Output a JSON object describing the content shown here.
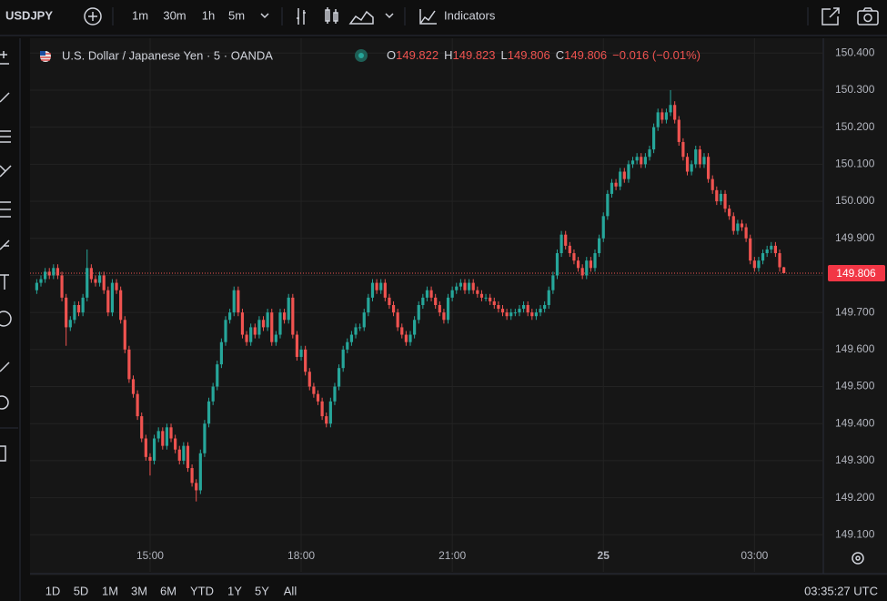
{
  "toolbar": {
    "symbol": "USDJPY",
    "intervals": [
      "1m",
      "30m",
      "1h",
      "5m"
    ],
    "indicators": "Indicators"
  },
  "range_bar": {
    "ranges": [
      "1D",
      "5D",
      "1M",
      "3M",
      "6M",
      "YTD",
      "1Y",
      "5Y",
      "All"
    ],
    "clock": "03:35:27 UTC"
  },
  "chart_data": {
    "type": "candlestick",
    "title": "U.S. Dollar / Japanese Yen · 5 · OANDA",
    "ohlc_labels": [
      "O",
      "H",
      "L",
      "C"
    ],
    "change": "−0.016 (−0.01%)",
    "up_color": "#26a69a",
    "down_color": "#ef5350",
    "grid": true,
    "xlim": [
      757,
      1702
    ],
    "xticks": [
      {
        "value": 900,
        "label": "15:00"
      },
      {
        "value": 1080,
        "label": "18:00"
      },
      {
        "value": 1260,
        "label": "21:00"
      },
      {
        "value": 1440,
        "label": "25"
      },
      {
        "value": 1620,
        "label": "03:00"
      }
    ],
    "ylim": [
      149.0,
      150.44
    ],
    "yticks": [
      {
        "value": 150.4,
        "label": "150.400"
      },
      {
        "value": 150.3,
        "label": "150.300"
      },
      {
        "value": 150.2,
        "label": "150.200"
      },
      {
        "value": 150.1,
        "label": "150.100"
      },
      {
        "value": 150.0,
        "label": "150.000"
      },
      {
        "value": 149.9,
        "label": "149.900"
      },
      {
        "value": 149.8,
        "label": "149.800"
      },
      {
        "value": 149.7,
        "label": "149.700"
      },
      {
        "value": 149.6,
        "label": "149.600"
      },
      {
        "value": 149.5,
        "label": "149.500"
      },
      {
        "value": 149.4,
        "label": "149.400"
      },
      {
        "value": 149.3,
        "label": "149.300"
      },
      {
        "value": 149.2,
        "label": "149.200"
      },
      {
        "value": 149.1,
        "label": "149.100"
      }
    ],
    "x": [
      765,
      770,
      775,
      780,
      785,
      790,
      795,
      800,
      805,
      810,
      815,
      820,
      825,
      830,
      835,
      840,
      845,
      850,
      855,
      860,
      865,
      870,
      875,
      880,
      885,
      890,
      895,
      900,
      905,
      910,
      915,
      920,
      925,
      930,
      935,
      940,
      945,
      950,
      955,
      960,
      965,
      970,
      975,
      980,
      985,
      990,
      995,
      1000,
      1005,
      1010,
      1015,
      1020,
      1025,
      1030,
      1035,
      1040,
      1045,
      1050,
      1055,
      1060,
      1065,
      1070,
      1075,
      1080,
      1085,
      1090,
      1095,
      1100,
      1105,
      1110,
      1115,
      1120,
      1125,
      1130,
      1135,
      1140,
      1145,
      1150,
      1155,
      1160,
      1165,
      1170,
      1175,
      1180,
      1185,
      1190,
      1195,
      1200,
      1205,
      1210,
      1215,
      1220,
      1225,
      1230,
      1235,
      1240,
      1245,
      1250,
      1255,
      1260,
      1265,
      1270,
      1275,
      1280,
      1285,
      1290,
      1295,
      1300,
      1305,
      1310,
      1315,
      1320,
      1325,
      1330,
      1335,
      1340,
      1345,
      1350,
      1355,
      1360,
      1365,
      1370,
      1375,
      1380,
      1385,
      1390,
      1395,
      1400,
      1405,
      1410,
      1415,
      1420,
      1425,
      1430,
      1435,
      1440,
      1445,
      1450,
      1455,
      1460,
      1465,
      1470,
      1475,
      1480,
      1485,
      1490,
      1495,
      1500,
      1505,
      1510,
      1515,
      1520,
      1525,
      1530,
      1535,
      1540,
      1545,
      1550,
      1555,
      1560,
      1565,
      1570,
      1575,
      1580,
      1585,
      1590,
      1595,
      1600,
      1605,
      1610,
      1615,
      1620,
      1625,
      1630,
      1635,
      1640,
      1645,
      1650,
      1655
    ],
    "open": [
      149.76,
      149.78,
      149.79,
      149.81,
      149.8,
      149.82,
      149.8,
      149.74,
      149.66,
      149.68,
      149.72,
      149.7,
      149.74,
      149.82,
      149.79,
      149.78,
      149.8,
      149.76,
      149.7,
      149.78,
      149.76,
      149.68,
      149.6,
      149.52,
      149.48,
      149.42,
      149.36,
      149.31,
      149.3,
      149.36,
      149.38,
      149.34,
      149.39,
      149.36,
      149.33,
      149.3,
      149.34,
      149.28,
      149.24,
      149.22,
      149.32,
      149.4,
      149.46,
      149.5,
      149.56,
      149.62,
      149.68,
      149.7,
      149.76,
      149.7,
      149.64,
      149.62,
      149.66,
      149.64,
      149.68,
      149.66,
      149.7,
      149.62,
      149.64,
      149.7,
      149.68,
      149.74,
      149.64,
      149.58,
      149.6,
      149.54,
      149.5,
      149.48,
      149.46,
      149.42,
      149.4,
      149.46,
      149.5,
      149.55,
      149.6,
      149.62,
      149.64,
      149.66,
      149.66,
      149.7,
      149.74,
      149.78,
      149.76,
      149.78,
      149.74,
      149.72,
      149.7,
      149.66,
      149.64,
      149.62,
      149.64,
      149.68,
      149.72,
      149.74,
      149.76,
      149.74,
      149.72,
      149.7,
      149.68,
      149.74,
      149.76,
      149.77,
      149.78,
      149.76,
      149.78,
      149.76,
      149.75,
      149.74,
      149.74,
      149.73,
      149.72,
      149.71,
      149.7,
      149.69,
      149.7,
      149.7,
      149.71,
      149.72,
      149.7,
      149.69,
      149.7,
      149.71,
      149.72,
      149.76,
      149.8,
      149.86,
      149.91,
      149.88,
      149.86,
      149.84,
      149.82,
      149.8,
      149.84,
      149.82,
      149.86,
      149.9,
      149.96,
      150.02,
      150.05,
      150.04,
      150.08,
      150.06,
      150.1,
      150.11,
      150.12,
      150.1,
      150.12,
      150.14,
      150.2,
      150.24,
      150.22,
      150.24,
      150.26,
      150.22,
      150.16,
      150.12,
      150.08,
      150.1,
      150.14,
      150.1,
      150.12,
      150.06,
      150.03,
      150.0,
      150.02,
      149.98,
      149.96,
      149.92,
      149.94,
      149.93,
      149.9,
      149.84,
      149.82,
      149.84,
      149.86,
      149.87,
      149.88,
      149.86,
      149.822
    ],
    "high": [
      149.79,
      149.8,
      149.82,
      149.82,
      149.83,
      149.83,
      149.81,
      149.75,
      149.69,
      149.73,
      149.73,
      149.75,
      149.87,
      149.83,
      149.8,
      149.81,
      149.81,
      149.77,
      149.79,
      149.79,
      149.77,
      149.69,
      149.61,
      149.53,
      149.49,
      149.43,
      149.37,
      149.32,
      149.37,
      149.39,
      149.39,
      149.4,
      149.4,
      149.37,
      149.34,
      149.35,
      149.35,
      149.29,
      149.25,
      149.33,
      149.41,
      149.47,
      149.51,
      149.57,
      149.63,
      149.69,
      149.71,
      149.77,
      149.77,
      149.71,
      149.65,
      149.67,
      149.67,
      149.69,
      149.69,
      149.71,
      149.71,
      149.65,
      149.71,
      149.71,
      149.75,
      149.75,
      149.65,
      149.61,
      149.61,
      149.55,
      149.51,
      149.49,
      149.47,
      149.43,
      149.47,
      149.51,
      149.56,
      149.61,
      149.63,
      149.65,
      149.67,
      149.67,
      149.71,
      149.75,
      149.79,
      149.79,
      149.79,
      149.79,
      149.75,
      149.73,
      149.71,
      149.67,
      149.65,
      149.65,
      149.69,
      149.73,
      149.75,
      149.77,
      149.77,
      149.75,
      149.73,
      149.71,
      149.75,
      149.77,
      149.78,
      149.79,
      149.79,
      149.79,
      149.79,
      149.77,
      149.76,
      149.75,
      149.75,
      149.74,
      149.73,
      149.72,
      149.71,
      149.71,
      149.71,
      149.72,
      149.73,
      149.73,
      149.71,
      149.71,
      149.72,
      149.73,
      149.77,
      149.81,
      149.87,
      149.92,
      149.92,
      149.89,
      149.87,
      149.85,
      149.83,
      149.85,
      149.85,
      149.87,
      149.91,
      149.97,
      150.03,
      150.06,
      150.06,
      150.09,
      150.09,
      150.11,
      150.12,
      150.13,
      150.13,
      150.13,
      150.15,
      150.21,
      150.25,
      150.25,
      150.25,
      150.3,
      150.27,
      150.23,
      150.17,
      150.13,
      150.11,
      150.15,
      150.15,
      150.13,
      150.13,
      150.07,
      150.04,
      150.03,
      150.03,
      149.99,
      149.97,
      149.95,
      149.95,
      149.94,
      149.91,
      149.85,
      149.85,
      149.87,
      149.88,
      149.89,
      149.89,
      149.87,
      149.823
    ],
    "low": [
      149.75,
      149.77,
      149.78,
      149.79,
      149.79,
      149.79,
      149.73,
      149.61,
      149.65,
      149.67,
      149.69,
      149.69,
      149.73,
      149.78,
      149.77,
      149.77,
      149.75,
      149.69,
      149.69,
      149.75,
      149.67,
      149.59,
      149.51,
      149.47,
      149.41,
      149.35,
      149.3,
      149.26,
      149.29,
      149.35,
      149.33,
      149.33,
      149.35,
      149.32,
      149.29,
      149.29,
      149.27,
      149.23,
      149.19,
      149.21,
      149.31,
      149.39,
      149.45,
      149.49,
      149.55,
      149.61,
      149.67,
      149.69,
      149.69,
      149.63,
      149.61,
      149.61,
      149.63,
      149.63,
      149.65,
      149.65,
      149.61,
      149.61,
      149.63,
      149.67,
      149.67,
      149.63,
      149.57,
      149.57,
      149.53,
      149.49,
      149.47,
      149.45,
      149.41,
      149.39,
      149.39,
      149.45,
      149.49,
      149.54,
      149.59,
      149.61,
      149.63,
      149.65,
      149.65,
      149.69,
      149.73,
      149.75,
      149.75,
      149.73,
      149.71,
      149.69,
      149.65,
      149.63,
      149.61,
      149.61,
      149.63,
      149.67,
      149.71,
      149.73,
      149.73,
      149.71,
      149.69,
      149.67,
      149.67,
      149.73,
      149.75,
      149.76,
      149.75,
      149.75,
      149.75,
      149.74,
      149.73,
      149.73,
      149.72,
      149.71,
      149.7,
      149.69,
      149.68,
      149.68,
      149.69,
      149.69,
      149.7,
      149.69,
      149.68,
      149.68,
      149.69,
      149.7,
      149.71,
      149.75,
      149.79,
      149.85,
      149.87,
      149.85,
      149.83,
      149.81,
      149.79,
      149.79,
      149.81,
      149.81,
      149.85,
      149.89,
      149.95,
      150.01,
      150.03,
      150.03,
      150.05,
      150.05,
      150.09,
      150.1,
      150.09,
      150.09,
      150.11,
      150.13,
      150.19,
      150.21,
      150.21,
      150.23,
      150.21,
      150.15,
      150.11,
      150.07,
      150.07,
      150.09,
      150.09,
      150.09,
      150.05,
      150.02,
      149.99,
      149.99,
      149.97,
      149.95,
      149.91,
      149.91,
      149.92,
      149.89,
      149.83,
      149.81,
      149.81,
      149.83,
      149.85,
      149.86,
      149.85,
      149.81,
      149.806
    ],
    "close": [
      149.78,
      149.79,
      149.81,
      149.8,
      149.82,
      149.8,
      149.74,
      149.66,
      149.68,
      149.72,
      149.7,
      149.74,
      149.82,
      149.79,
      149.78,
      149.8,
      149.76,
      149.7,
      149.78,
      149.76,
      149.68,
      149.6,
      149.52,
      149.48,
      149.42,
      149.36,
      149.31,
      149.3,
      149.36,
      149.38,
      149.34,
      149.39,
      149.36,
      149.33,
      149.3,
      149.34,
      149.28,
      149.24,
      149.22,
      149.32,
      149.4,
      149.46,
      149.5,
      149.56,
      149.62,
      149.68,
      149.7,
      149.76,
      149.7,
      149.64,
      149.62,
      149.66,
      149.64,
      149.68,
      149.66,
      149.7,
      149.62,
      149.64,
      149.7,
      149.68,
      149.74,
      149.64,
      149.58,
      149.6,
      149.54,
      149.5,
      149.48,
      149.46,
      149.42,
      149.4,
      149.46,
      149.5,
      149.55,
      149.6,
      149.62,
      149.64,
      149.66,
      149.66,
      149.7,
      149.74,
      149.78,
      149.76,
      149.78,
      149.74,
      149.72,
      149.7,
      149.66,
      149.64,
      149.62,
      149.64,
      149.68,
      149.72,
      149.74,
      149.76,
      149.74,
      149.72,
      149.7,
      149.68,
      149.74,
      149.76,
      149.77,
      149.78,
      149.76,
      149.78,
      149.76,
      149.75,
      149.74,
      149.74,
      149.73,
      149.72,
      149.71,
      149.7,
      149.69,
      149.7,
      149.7,
      149.71,
      149.72,
      149.7,
      149.69,
      149.7,
      149.71,
      149.72,
      149.76,
      149.8,
      149.86,
      149.91,
      149.88,
      149.86,
      149.84,
      149.82,
      149.8,
      149.84,
      149.82,
      149.86,
      149.9,
      149.96,
      150.02,
      150.05,
      150.04,
      150.08,
      150.06,
      150.1,
      150.11,
      150.12,
      150.1,
      150.12,
      150.14,
      150.2,
      150.24,
      150.22,
      150.24,
      150.26,
      150.22,
      150.16,
      150.12,
      150.08,
      150.1,
      150.14,
      150.1,
      150.12,
      150.06,
      150.03,
      150.0,
      150.02,
      149.98,
      149.96,
      149.92,
      149.94,
      149.93,
      149.9,
      149.84,
      149.82,
      149.84,
      149.86,
      149.87,
      149.88,
      149.86,
      149.822,
      149.806
    ]
  }
}
